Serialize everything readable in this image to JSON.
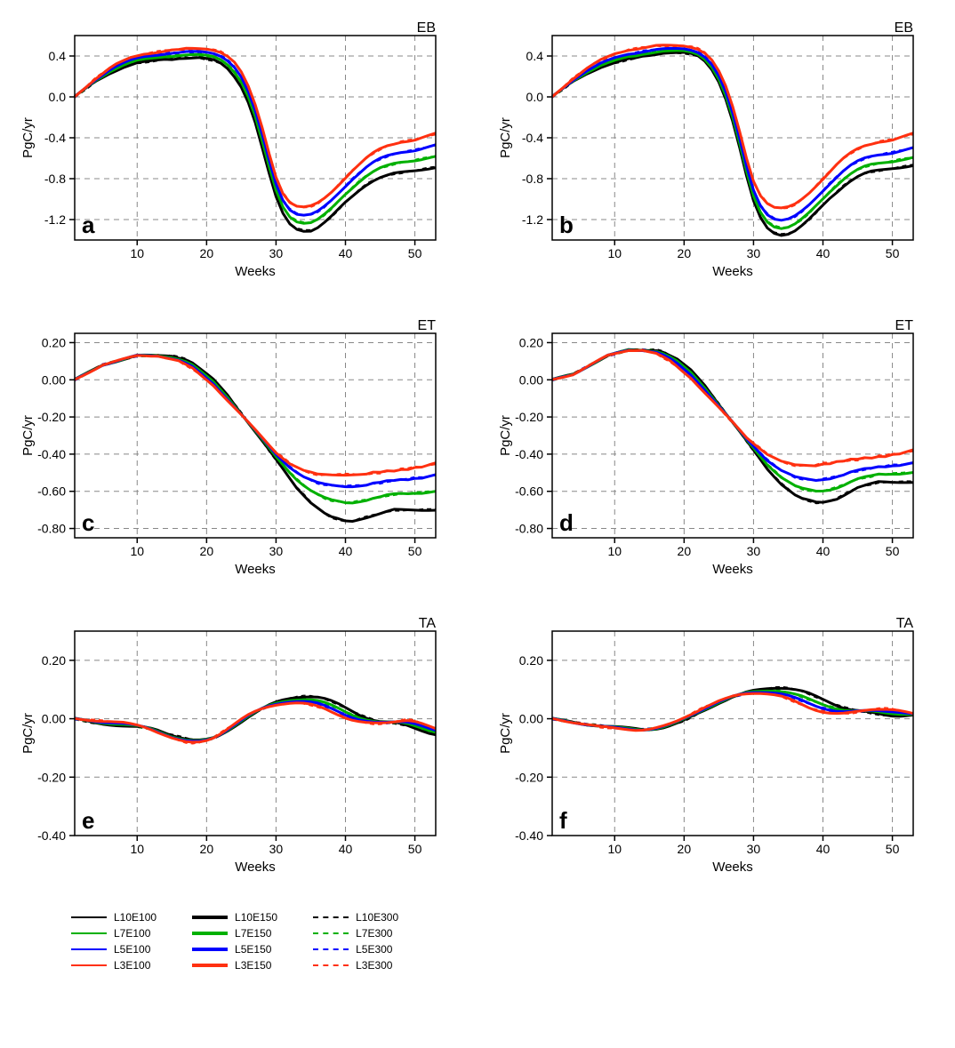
{
  "figure_width": 1074,
  "figure_height": 1179,
  "background_color": "#ffffff",
  "axis_color": "#000000",
  "grid_color": "#888888",
  "tick_font_size": 14,
  "label_font_size": 15,
  "panel_letter_font_size": 26,
  "panel_letter_weight": "bold",
  "region_label_font_size": 16,
  "xaxis": {
    "label": "Weeks",
    "min": 1,
    "max": 53,
    "ticks": [
      10,
      20,
      30,
      40,
      50
    ]
  },
  "ylabel": "PgC/yr",
  "series_styles": {
    "L10E100": {
      "color": "#000000",
      "width": 1.2,
      "dash": "none"
    },
    "L7E100": {
      "color": "#00b000",
      "width": 1.2,
      "dash": "none"
    },
    "L5E100": {
      "color": "#0000ff",
      "width": 1.2,
      "dash": "none"
    },
    "L3E100": {
      "color": "#ff3010",
      "width": 1.2,
      "dash": "none"
    },
    "L10E150": {
      "color": "#000000",
      "width": 3.0,
      "dash": "none"
    },
    "L7E150": {
      "color": "#00b000",
      "width": 3.0,
      "dash": "none"
    },
    "L5E150": {
      "color": "#0000ff",
      "width": 3.0,
      "dash": "none"
    },
    "L3E150": {
      "color": "#ff3010",
      "width": 3.0,
      "dash": "none"
    },
    "L10E300": {
      "color": "#000000",
      "width": 1.2,
      "dash": "5,4"
    },
    "L7E300": {
      "color": "#00b000",
      "width": 1.2,
      "dash": "5,4"
    },
    "L5E300": {
      "color": "#0000ff",
      "width": 1.2,
      "dash": "5,4"
    },
    "L3E300": {
      "color": "#ff3010",
      "width": 1.2,
      "dash": "5,4"
    }
  },
  "legend_order": [
    [
      "L10E100",
      "L7E100",
      "L5E100",
      "L3E100"
    ],
    [
      "L10E150",
      "L7E150",
      "L5E150",
      "L3E150"
    ],
    [
      "L10E300",
      "L7E300",
      "L5E300",
      "L3E300"
    ]
  ],
  "panels": {
    "a": {
      "letter": "a",
      "region": "EB",
      "ymin": -1.4,
      "ymax": 0.6,
      "yticks": [
        -1.2,
        -0.8,
        -0.4,
        0.0,
        0.4
      ],
      "ytick_fmt": 1,
      "baselines": {
        "L10": [
          0.0,
          0.05,
          0.1,
          0.15,
          0.19,
          0.23,
          0.26,
          0.29,
          0.31,
          0.33,
          0.34,
          0.35,
          0.36,
          0.37,
          0.37,
          0.38,
          0.38,
          0.38,
          0.38,
          0.37,
          0.36,
          0.33,
          0.28,
          0.2,
          0.1,
          -0.05,
          -0.25,
          -0.5,
          -0.75,
          -0.98,
          -1.14,
          -1.24,
          -1.29,
          -1.31,
          -1.31,
          -1.28,
          -1.23,
          -1.17,
          -1.1,
          -1.03,
          -0.97,
          -0.91,
          -0.86,
          -0.82,
          -0.79,
          -0.77,
          -0.75,
          -0.74,
          -0.73,
          -0.72,
          -0.71,
          -0.7,
          -0.69
        ],
        "L7": null,
        "L5": null,
        "L3": [
          0.0,
          0.06,
          0.12,
          0.18,
          0.23,
          0.28,
          0.32,
          0.35,
          0.38,
          0.4,
          0.42,
          0.43,
          0.44,
          0.45,
          0.46,
          0.46,
          0.47,
          0.47,
          0.47,
          0.47,
          0.46,
          0.44,
          0.4,
          0.34,
          0.24,
          0.1,
          -0.08,
          -0.3,
          -0.55,
          -0.78,
          -0.94,
          -1.03,
          -1.07,
          -1.08,
          -1.07,
          -1.04,
          -0.99,
          -0.93,
          -0.86,
          -0.79,
          -0.72,
          -0.66,
          -0.6,
          -0.55,
          -0.51,
          -0.48,
          -0.46,
          -0.44,
          -0.43,
          -0.42,
          -0.4,
          -0.38,
          -0.36
        ]
      },
      "spread_interp": {
        "L7": 0.33,
        "L5": 0.66
      }
    },
    "b": {
      "letter": "b",
      "region": "EB",
      "ymin": -1.4,
      "ymax": 0.6,
      "yticks": [
        -1.2,
        -0.8,
        -0.4,
        0.0,
        0.4
      ],
      "ytick_fmt": 1,
      "baselines": {
        "L10": [
          0.0,
          0.05,
          0.1,
          0.15,
          0.19,
          0.23,
          0.26,
          0.29,
          0.31,
          0.33,
          0.35,
          0.37,
          0.38,
          0.4,
          0.41,
          0.42,
          0.43,
          0.43,
          0.43,
          0.43,
          0.42,
          0.4,
          0.35,
          0.27,
          0.15,
          -0.02,
          -0.24,
          -0.5,
          -0.78,
          -1.02,
          -1.18,
          -1.28,
          -1.33,
          -1.35,
          -1.34,
          -1.31,
          -1.26,
          -1.2,
          -1.13,
          -1.06,
          -0.99,
          -0.93,
          -0.87,
          -0.82,
          -0.78,
          -0.75,
          -0.73,
          -0.72,
          -0.71,
          -0.7,
          -0.69,
          -0.68,
          -0.67
        ],
        "L7": null,
        "L5": null,
        "L3": [
          0.0,
          0.06,
          0.12,
          0.18,
          0.23,
          0.28,
          0.32,
          0.36,
          0.39,
          0.42,
          0.44,
          0.46,
          0.47,
          0.48,
          0.49,
          0.5,
          0.5,
          0.5,
          0.5,
          0.5,
          0.49,
          0.47,
          0.43,
          0.36,
          0.25,
          0.1,
          -0.1,
          -0.34,
          -0.6,
          -0.82,
          -0.96,
          -1.04,
          -1.08,
          -1.09,
          -1.08,
          -1.05,
          -1.0,
          -0.94,
          -0.87,
          -0.8,
          -0.73,
          -0.66,
          -0.6,
          -0.55,
          -0.51,
          -0.48,
          -0.46,
          -0.44,
          -0.43,
          -0.42,
          -0.4,
          -0.38,
          -0.36
        ]
      },
      "spread_interp": {
        "L7": 0.25,
        "L5": 0.55
      }
    },
    "c": {
      "letter": "c",
      "region": "ET",
      "ymin": -0.85,
      "ymax": 0.25,
      "yticks": [
        -0.8,
        -0.6,
        -0.4,
        -0.2,
        0.0,
        0.2
      ],
      "ytick_fmt": 2,
      "baselines": {
        "L10": [
          0.0,
          0.02,
          0.04,
          0.06,
          0.08,
          0.09,
          0.1,
          0.11,
          0.12,
          0.13,
          0.13,
          0.13,
          0.13,
          0.13,
          0.13,
          0.12,
          0.11,
          0.09,
          0.06,
          0.03,
          0.0,
          -0.04,
          -0.08,
          -0.13,
          -0.18,
          -0.23,
          -0.28,
          -0.33,
          -0.38,
          -0.43,
          -0.48,
          -0.53,
          -0.58,
          -0.62,
          -0.66,
          -0.69,
          -0.72,
          -0.74,
          -0.75,
          -0.76,
          -0.76,
          -0.75,
          -0.74,
          -0.73,
          -0.72,
          -0.71,
          -0.7,
          -0.7,
          -0.7,
          -0.7,
          -0.7,
          -0.7,
          -0.7
        ],
        "L7": null,
        "L5": null,
        "L3": [
          0.0,
          0.02,
          0.04,
          0.06,
          0.08,
          0.09,
          0.1,
          0.11,
          0.12,
          0.13,
          0.13,
          0.13,
          0.13,
          0.12,
          0.11,
          0.1,
          0.08,
          0.06,
          0.03,
          0.0,
          -0.03,
          -0.07,
          -0.11,
          -0.15,
          -0.19,
          -0.23,
          -0.27,
          -0.31,
          -0.35,
          -0.39,
          -0.42,
          -0.45,
          -0.47,
          -0.49,
          -0.5,
          -0.51,
          -0.51,
          -0.51,
          -0.51,
          -0.51,
          -0.51,
          -0.51,
          -0.51,
          -0.5,
          -0.5,
          -0.49,
          -0.49,
          -0.48,
          -0.48,
          -0.47,
          -0.47,
          -0.46,
          -0.45
        ]
      },
      "spread_interp": {
        "L7": 0.4,
        "L5": 0.75
      }
    },
    "d": {
      "letter": "d",
      "region": "ET",
      "ymin": -0.85,
      "ymax": 0.25,
      "yticks": [
        -0.8,
        -0.6,
        -0.4,
        -0.2,
        0.0,
        0.2
      ],
      "ytick_fmt": 2,
      "baselines": {
        "L10": [
          0.0,
          0.01,
          0.02,
          0.03,
          0.05,
          0.07,
          0.09,
          0.11,
          0.13,
          0.14,
          0.15,
          0.16,
          0.16,
          0.16,
          0.16,
          0.16,
          0.15,
          0.13,
          0.11,
          0.08,
          0.05,
          0.01,
          -0.03,
          -0.08,
          -0.13,
          -0.18,
          -0.23,
          -0.28,
          -0.33,
          -0.38,
          -0.43,
          -0.48,
          -0.52,
          -0.56,
          -0.59,
          -0.62,
          -0.64,
          -0.65,
          -0.66,
          -0.66,
          -0.65,
          -0.64,
          -0.62,
          -0.6,
          -0.58,
          -0.57,
          -0.56,
          -0.55,
          -0.55,
          -0.55,
          -0.55,
          -0.55,
          -0.55
        ],
        "L7": null,
        "L5": null,
        "L3": [
          0.0,
          0.01,
          0.02,
          0.03,
          0.05,
          0.07,
          0.09,
          0.11,
          0.13,
          0.14,
          0.15,
          0.16,
          0.16,
          0.16,
          0.15,
          0.14,
          0.12,
          0.1,
          0.07,
          0.04,
          0.01,
          -0.03,
          -0.07,
          -0.11,
          -0.15,
          -0.19,
          -0.23,
          -0.27,
          -0.31,
          -0.34,
          -0.37,
          -0.4,
          -0.42,
          -0.44,
          -0.45,
          -0.46,
          -0.46,
          -0.46,
          -0.46,
          -0.45,
          -0.45,
          -0.44,
          -0.44,
          -0.43,
          -0.43,
          -0.42,
          -0.42,
          -0.41,
          -0.41,
          -0.4,
          -0.4,
          -0.39,
          -0.38
        ]
      },
      "spread_interp": {
        "L7": 0.3,
        "L5": 0.6
      }
    },
    "e": {
      "letter": "e",
      "region": "TA",
      "ymin": -0.4,
      "ymax": 0.3,
      "yticks": [
        -0.4,
        -0.2,
        0.0,
        0.2
      ],
      "ytick_fmt": 2,
      "baselines": {
        "L10": [
          0.0,
          -0.005,
          -0.01,
          -0.015,
          -0.018,
          -0.02,
          -0.022,
          -0.024,
          -0.026,
          -0.028,
          -0.03,
          -0.034,
          -0.04,
          -0.048,
          -0.056,
          -0.062,
          -0.068,
          -0.072,
          -0.074,
          -0.072,
          -0.066,
          -0.056,
          -0.042,
          -0.026,
          -0.01,
          0.006,
          0.02,
          0.034,
          0.046,
          0.056,
          0.064,
          0.07,
          0.074,
          0.076,
          0.076,
          0.074,
          0.068,
          0.06,
          0.05,
          0.038,
          0.026,
          0.014,
          0.004,
          -0.004,
          -0.01,
          -0.012,
          -0.014,
          -0.018,
          -0.024,
          -0.032,
          -0.04,
          -0.048,
          -0.054
        ],
        "L7": null,
        "L5": null,
        "L3": [
          0.0,
          -0.002,
          -0.004,
          -0.006,
          -0.008,
          -0.01,
          -0.012,
          -0.014,
          -0.018,
          -0.022,
          -0.028,
          -0.036,
          -0.046,
          -0.056,
          -0.066,
          -0.074,
          -0.08,
          -0.082,
          -0.08,
          -0.074,
          -0.064,
          -0.05,
          -0.034,
          -0.018,
          -0.002,
          0.012,
          0.024,
          0.034,
          0.042,
          0.048,
          0.052,
          0.054,
          0.054,
          0.052,
          0.048,
          0.042,
          0.034,
          0.024,
          0.014,
          0.004,
          -0.004,
          -0.01,
          -0.014,
          -0.016,
          -0.016,
          -0.014,
          -0.01,
          -0.006,
          -0.004,
          -0.008,
          -0.016,
          -0.026,
          -0.036
        ]
      },
      "spread_interp": {
        "L7": 0.4,
        "L5": 0.7
      }
    },
    "f": {
      "letter": "f",
      "region": "TA",
      "ymin": -0.4,
      "ymax": 0.3,
      "yticks": [
        -0.4,
        -0.2,
        0.0,
        0.2
      ],
      "ytick_fmt": 2,
      "baselines": {
        "L10": [
          0.0,
          -0.004,
          -0.008,
          -0.012,
          -0.016,
          -0.02,
          -0.022,
          -0.024,
          -0.026,
          -0.028,
          -0.03,
          -0.032,
          -0.034,
          -0.036,
          -0.036,
          -0.034,
          -0.03,
          -0.024,
          -0.016,
          -0.006,
          0.006,
          0.018,
          0.03,
          0.042,
          0.054,
          0.064,
          0.074,
          0.082,
          0.09,
          0.096,
          0.1,
          0.104,
          0.106,
          0.106,
          0.104,
          0.1,
          0.094,
          0.086,
          0.076,
          0.066,
          0.056,
          0.046,
          0.038,
          0.032,
          0.028,
          0.024,
          0.02,
          0.016,
          0.012,
          0.01,
          0.01,
          0.012,
          0.014
        ],
        "L7": null,
        "L5": null,
        "L3": [
          0.0,
          -0.004,
          -0.008,
          -0.012,
          -0.016,
          -0.02,
          -0.024,
          -0.028,
          -0.03,
          -0.032,
          -0.034,
          -0.036,
          -0.038,
          -0.038,
          -0.036,
          -0.032,
          -0.026,
          -0.018,
          -0.008,
          0.004,
          0.016,
          0.028,
          0.04,
          0.05,
          0.06,
          0.068,
          0.076,
          0.082,
          0.086,
          0.088,
          0.088,
          0.086,
          0.082,
          0.076,
          0.068,
          0.058,
          0.048,
          0.038,
          0.03,
          0.024,
          0.02,
          0.018,
          0.018,
          0.02,
          0.024,
          0.028,
          0.032,
          0.034,
          0.034,
          0.032,
          0.028,
          0.022,
          0.016
        ]
      },
      "spread_interp": {
        "L7": 0.4,
        "L5": 0.7
      }
    }
  }
}
